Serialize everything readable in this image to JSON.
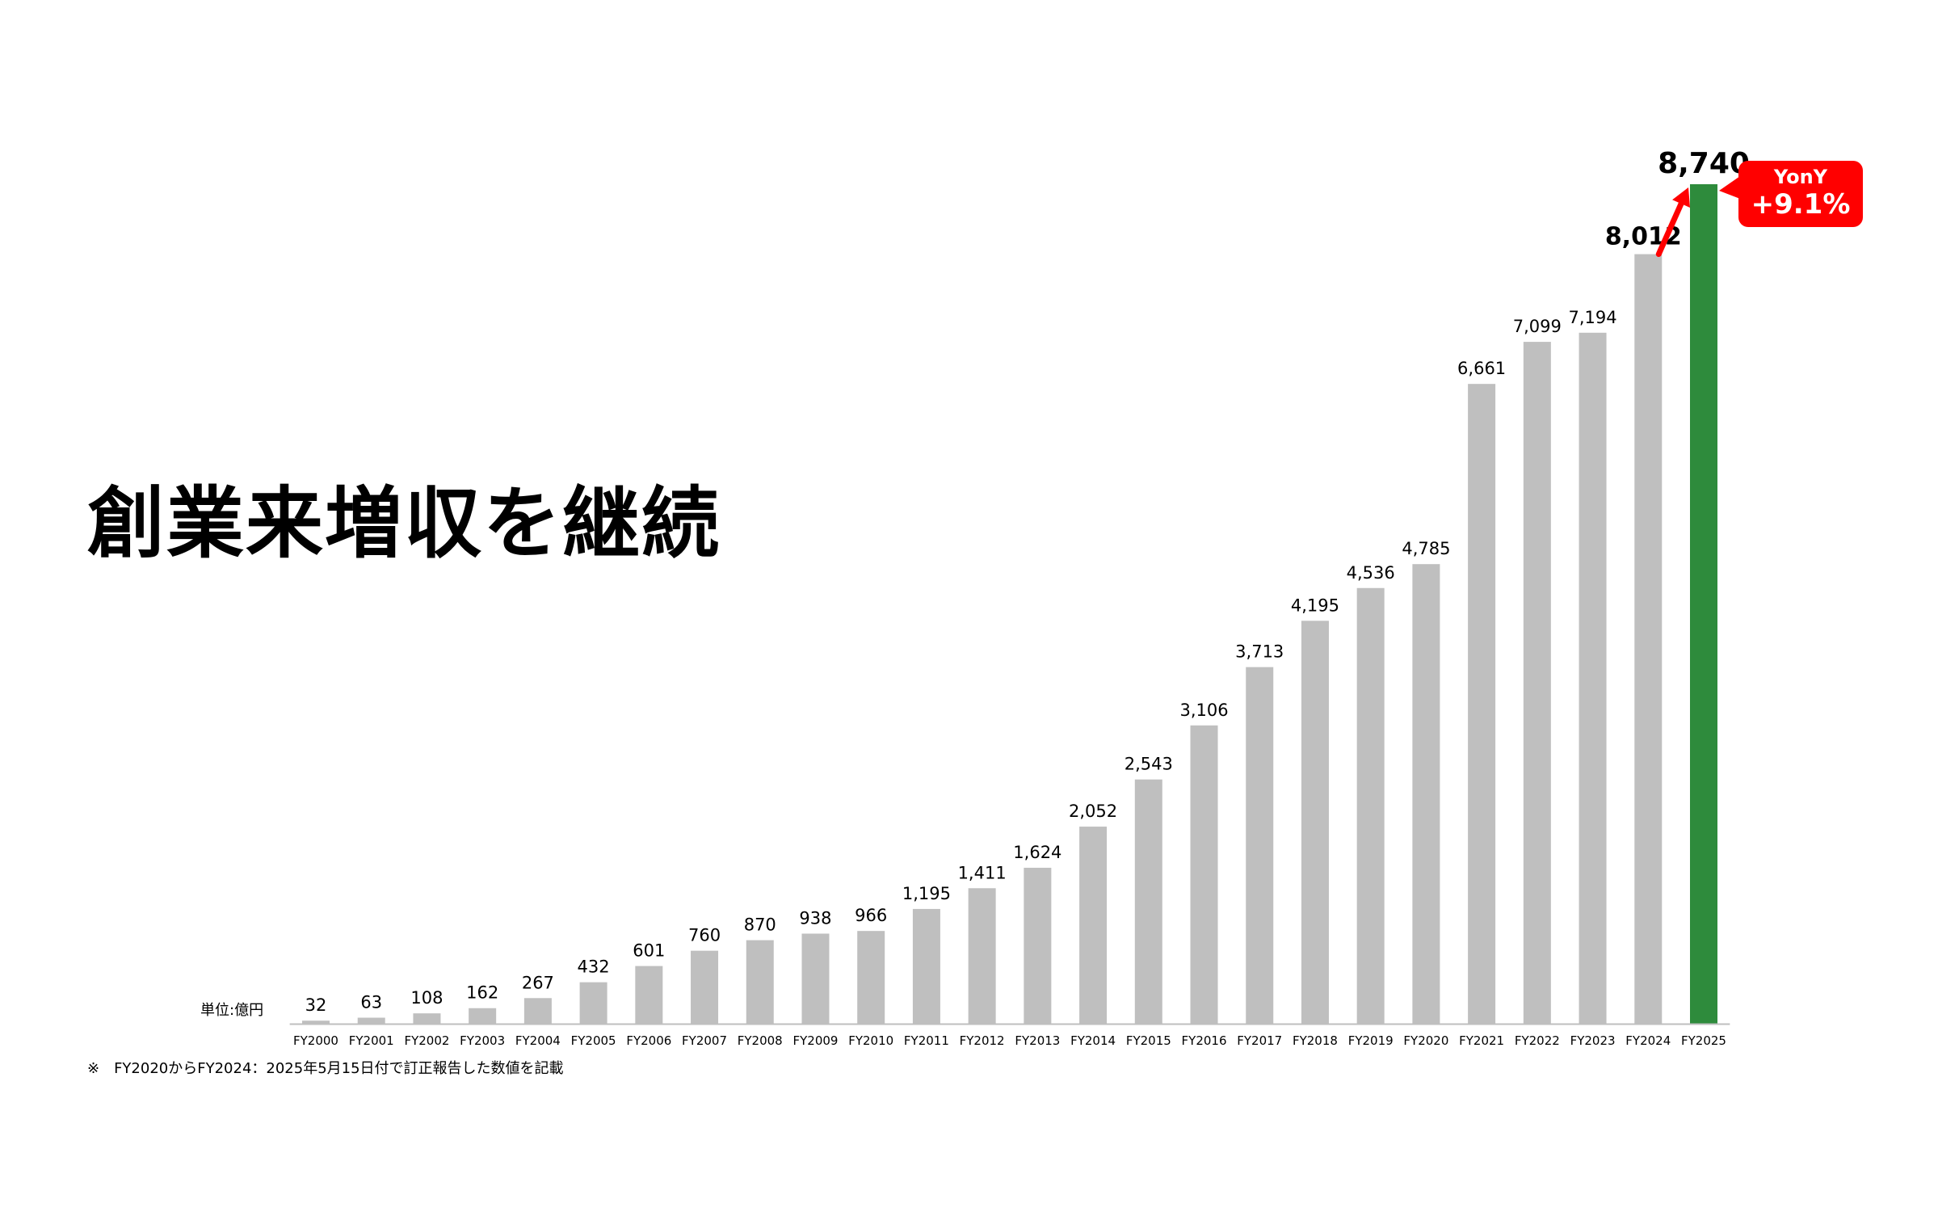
{
  "headline": "創業来増収を継続",
  "unit_label": "単位:億円",
  "footnote": "※　FY2020からFY2024：2025年5月15日付で訂正報告した数値を記載",
  "badge": {
    "line1": "YonY",
    "line2": "+9.1%"
  },
  "colors": {
    "bar": "#bfbfbf",
    "highlight_bar": "#2e8b3c",
    "arrow": "#ff0000",
    "badge": "#ff0000"
  },
  "chart_data": {
    "type": "bar",
    "categories": [
      "FY2000",
      "FY2001",
      "FY2002",
      "FY2003",
      "FY2004",
      "FY2005",
      "FY2006",
      "FY2007",
      "FY2008",
      "FY2009",
      "FY2010",
      "FY2011",
      "FY2012",
      "FY2013",
      "FY2014",
      "FY2015",
      "FY2016",
      "FY2017",
      "FY2018",
      "FY2019",
      "FY2020",
      "FY2021",
      "FY2022",
      "FY2023",
      "FY2024",
      "FY2025"
    ],
    "values": [
      32,
      63,
      108,
      162,
      267,
      432,
      601,
      760,
      870,
      938,
      966,
      1195,
      1411,
      1624,
      2052,
      2543,
      3106,
      3713,
      4195,
      4536,
      4785,
      6661,
      7099,
      7194,
      8012,
      8740
    ],
    "value_labels": [
      "32",
      "63",
      "108",
      "162",
      "267",
      "432",
      "601",
      "760",
      "870",
      "938",
      "966",
      "1,195",
      "1,411",
      "1,624",
      "2,052",
      "2,543",
      "3,106",
      "3,713",
      "4,195",
      "4,536",
      "4,785",
      "6,661",
      "7,099",
      "7,194",
      "8,012",
      "8,740"
    ],
    "ylim": [
      0,
      8740
    ],
    "highlight_category": "FY2025",
    "grid": false,
    "legend": "none",
    "title": "",
    "xlabel": "",
    "ylabel": ""
  }
}
